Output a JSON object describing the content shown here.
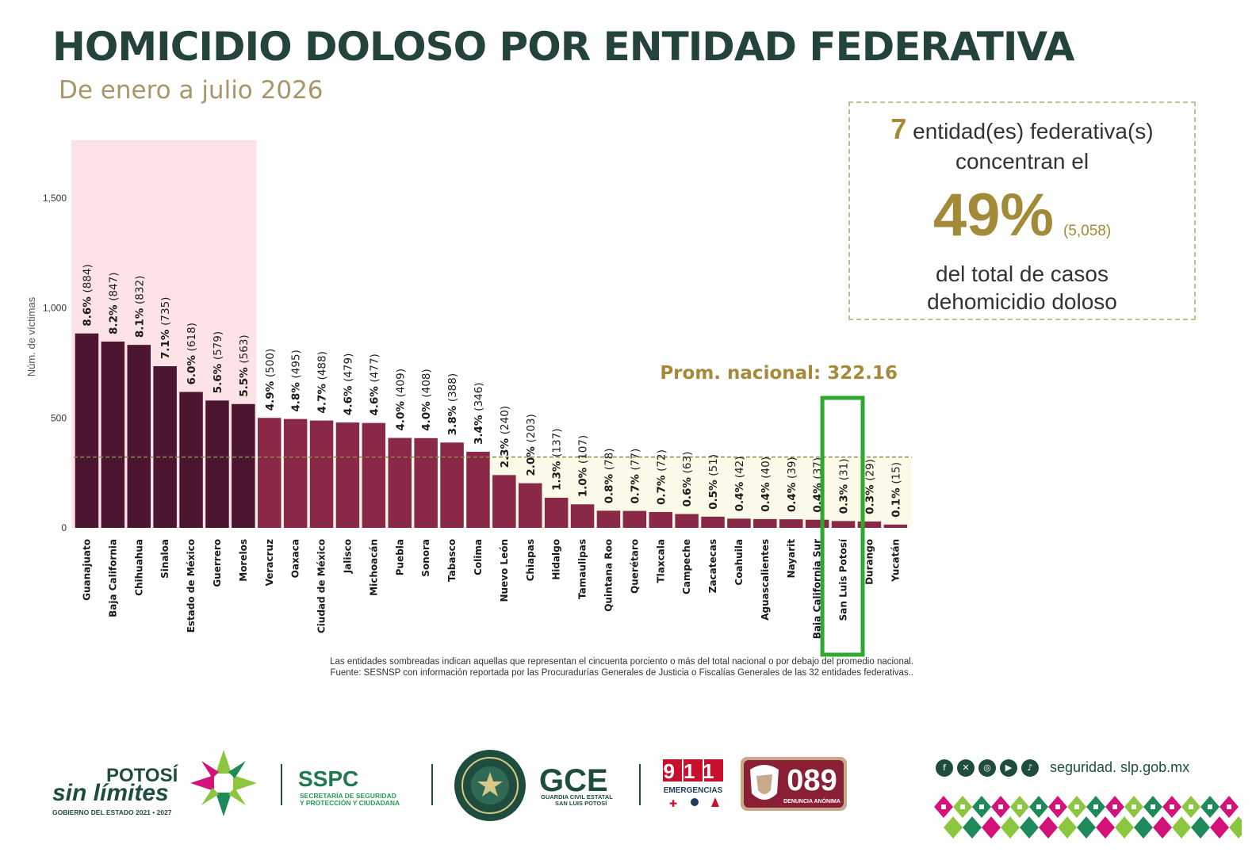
{
  "header": {
    "title": "HOMICIDIO DOLOSO POR ENTIDAD FEDERATIVA",
    "subtitle": "De enero a julio 2026"
  },
  "callout": {
    "count_num": "7",
    "line1": " entidad(es) federativa(s)",
    "line2": "concentran el",
    "percent": "49%",
    "total": "(5,058)",
    "line3": "del total de casos",
    "line4": "dehomicidio doloso"
  },
  "chart_data": {
    "type": "bar",
    "ylabel": "Núm. de víctimas",
    "ylim": [
      0,
      1750
    ],
    "yticks": [
      0,
      500,
      1000,
      1500
    ],
    "ytick_labels": [
      "0",
      "500",
      "1,000",
      "1,500"
    ],
    "average_label": "Prom. nacional: 322.16",
    "average": 322.16,
    "highlight_category": "San Luis Potosí",
    "categories": [
      "Guanajuato",
      "Baja California",
      "Chihuahua",
      "Sinaloa",
      "Estado de México",
      "Guerrero",
      "Morelos",
      "Veracruz",
      "Oaxaca",
      "Ciudad de México",
      "Jalisco",
      "Michoacán",
      "Puebla",
      "Sonora",
      "Tabasco",
      "Colima",
      "Nuevo León",
      "Chiapas",
      "Hidalgo",
      "Tamaulipas",
      "Quintana Roo",
      "Querétaro",
      "Tlaxcala",
      "Campeche",
      "Zacatecas",
      "Coahuila",
      "Aguascalientes",
      "Nayarit",
      "Baja California Sur",
      "San Luis Potosí",
      "Durango",
      "Yucatán"
    ],
    "values": [
      884,
      847,
      832,
      735,
      618,
      579,
      563,
      500,
      495,
      488,
      479,
      477,
      409,
      408,
      388,
      346,
      240,
      203,
      137,
      107,
      78,
      77,
      72,
      63,
      51,
      42,
      40,
      39,
      37,
      31,
      29,
      15
    ],
    "percents": [
      "8.6%",
      "8.2%",
      "8.1%",
      "7.1%",
      "6.0%",
      "5.6%",
      "5.5%",
      "4.9%",
      "4.8%",
      "4.7%",
      "4.6%",
      "4.6%",
      "4.0%",
      "4.0%",
      "3.8%",
      "3.4%",
      "2.3%",
      "2.0%",
      "1.3%",
      "1.0%",
      "0.8%",
      "0.7%",
      "0.7%",
      "0.6%",
      "0.5%",
      "0.4%",
      "0.4%",
      "0.4%",
      "0.4%",
      "0.3%",
      "0.3%",
      "0.1%"
    ],
    "value_labels": [
      "(884)",
      "(847)",
      "(832)",
      "(735)",
      "(618)",
      "(579)",
      "(563)",
      "(500)",
      "(495)",
      "(488)",
      "(479)",
      "(477)",
      "(409)",
      "(408)",
      "(388)",
      "(346)",
      "(240)",
      "(203)",
      "(137)",
      "(107)",
      "(78)",
      "(77)",
      "(72)",
      "(63)",
      "(51)",
      "(42)",
      "(40)",
      "(39)",
      "(37)",
      "(31)",
      "(29)",
      "(15)"
    ],
    "concentrated_count": 7,
    "colors": {
      "top": "#4c1631",
      "rest": "#8a2848",
      "top_band": "#fde3e6",
      "below_avg_band": "#fbf9e7",
      "avg_line": "#8b8a4e",
      "highlight": "#2ea82e"
    }
  },
  "footnotes": {
    "line1": "Las entidades sombreadas indican aquellas que representan el cincuenta porciento o más del total nacional o por debajo del promedio nacional.",
    "line2": "Fuente: SESNSP con información reportada por las Procuradurías Generales de Justicia o Fiscalías Generales de las 32 entidades federativas.."
  },
  "footer": {
    "potosi_word1": "POTOSÍ",
    "potosi_word2": "sin límites",
    "potosi_gov": "GOBIERNO DEL ESTADO 2021 • 2027",
    "sspc_title": "SSPC",
    "sspc_line1": "SECRETARÍA DE SEGURIDAD",
    "sspc_line2": "Y PROTECCIÓN Y CIUDADANA",
    "gce_title": "GCE",
    "gce_line1": "GUARDIA CIVIL ESTATAL",
    "gce_line2": "SAN LUIS POTOSÍ",
    "n911": "911",
    "n911_label": "EMERGENCIAS",
    "n089": "089",
    "n089_label": "DENUNCIA ANÓNIMA",
    "website": "seguridad. slp.gob.mx",
    "social_icons": [
      "facebook-icon",
      "x-icon",
      "instagram-icon",
      "youtube-icon",
      "tiktok-icon"
    ]
  }
}
